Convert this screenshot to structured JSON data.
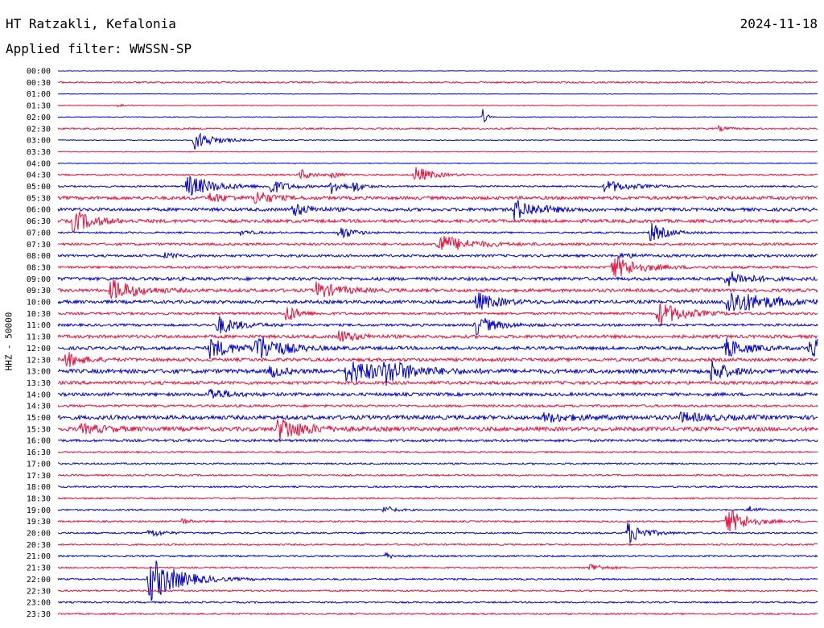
{
  "header": {
    "station": "HT Ratzakli, Kefalonia",
    "date": "2024-11-18",
    "filter": "Applied filter: WWSSN-SP"
  },
  "chart_data": {
    "type": "line",
    "description_kind": "helicorder",
    "ylabel": "HHZ - 50000",
    "row_labels": [
      "00:00",
      "00:30",
      "01:00",
      "01:30",
      "02:00",
      "02:30",
      "03:00",
      "03:30",
      "04:00",
      "04:30",
      "05:00",
      "05:30",
      "06:00",
      "06:30",
      "07:00",
      "07:30",
      "08:00",
      "08:30",
      "09:00",
      "09:30",
      "10:00",
      "10:30",
      "11:00",
      "11:30",
      "12:00",
      "12:30",
      "13:00",
      "13:30",
      "14:00",
      "14:30",
      "15:00",
      "15:30",
      "16:00",
      "16:30",
      "17:00",
      "17:30",
      "18:00",
      "18:30",
      "19:00",
      "19:30",
      "20:00",
      "20:30",
      "21:00",
      "21:30",
      "22:00",
      "22:30",
      "23:00",
      "23:30"
    ],
    "colors": [
      "#0000cc",
      "#e8103c"
    ],
    "noise": [
      0.3,
      1,
      0.3,
      0.5,
      0.5,
      1,
      0.5,
      0.5,
      0.5,
      1,
      1,
      2,
      2,
      2,
      1,
      1.5,
      1.5,
      1.5,
      2,
      2,
      2,
      1.5,
      1.5,
      2,
      2,
      2,
      2.5,
      2,
      2,
      1.5,
      2.5,
      2.5,
      1.5,
      1,
      1,
      1,
      1,
      1,
      1,
      1,
      1,
      1,
      1,
      1,
      1,
      1,
      1,
      1
    ],
    "events": [
      {
        "row": 4,
        "x": 0.56,
        "amp": 12,
        "dur": 0.004
      },
      {
        "row": 3,
        "x": 0.08,
        "amp": 2,
        "dur": 0.01
      },
      {
        "row": 5,
        "x": 0.87,
        "amp": 3,
        "dur": 0.01
      },
      {
        "row": 6,
        "x": 0.18,
        "amp": 12,
        "dur": 0.025
      },
      {
        "row": 9,
        "x": 0.32,
        "amp": 7,
        "dur": 0.012
      },
      {
        "row": 9,
        "x": 0.36,
        "amp": 4,
        "dur": 0.01
      },
      {
        "row": 9,
        "x": 0.47,
        "amp": 11,
        "dur": 0.02
      },
      {
        "row": 10,
        "x": 0.17,
        "amp": 14,
        "dur": 0.035
      },
      {
        "row": 10,
        "x": 0.28,
        "amp": 9,
        "dur": 0.02
      },
      {
        "row": 10,
        "x": 0.36,
        "amp": 9,
        "dur": 0.015
      },
      {
        "row": 10,
        "x": 0.39,
        "amp": 7,
        "dur": 0.01
      },
      {
        "row": 10,
        "x": 0.72,
        "amp": 8,
        "dur": 0.03
      },
      {
        "row": 11,
        "x": 0.2,
        "amp": 6,
        "dur": 0.02
      },
      {
        "row": 11,
        "x": 0.26,
        "amp": 9,
        "dur": 0.02
      },
      {
        "row": 12,
        "x": 0.31,
        "amp": 8,
        "dur": 0.02
      },
      {
        "row": 12,
        "x": 0.6,
        "amp": 13,
        "dur": 0.03
      },
      {
        "row": 13,
        "x": 0.02,
        "amp": 14,
        "dur": 0.025
      },
      {
        "row": 14,
        "x": 0.24,
        "amp": 3,
        "dur": 0.015
      },
      {
        "row": 14,
        "x": 0.37,
        "amp": 10,
        "dur": 0.015
      },
      {
        "row": 14,
        "x": 0.78,
        "amp": 12,
        "dur": 0.02
      },
      {
        "row": 15,
        "x": 0.5,
        "amp": 13,
        "dur": 0.035
      },
      {
        "row": 16,
        "x": 0.14,
        "amp": 3,
        "dur": 0.02
      },
      {
        "row": 16,
        "x": 0.74,
        "amp": 3,
        "dur": 0.02
      },
      {
        "row": 17,
        "x": 0.73,
        "amp": 16,
        "dur": 0.03
      },
      {
        "row": 18,
        "x": 0.88,
        "amp": 10,
        "dur": 0.025
      },
      {
        "row": 19,
        "x": 0.07,
        "amp": 14,
        "dur": 0.03
      },
      {
        "row": 19,
        "x": 0.34,
        "amp": 10,
        "dur": 0.03
      },
      {
        "row": 20,
        "x": 0.55,
        "amp": 12,
        "dur": 0.025
      },
      {
        "row": 20,
        "x": 0.88,
        "amp": 16,
        "dur": 0.05
      },
      {
        "row": 21,
        "x": 0.3,
        "amp": 12,
        "dur": 0.015
      },
      {
        "row": 21,
        "x": 0.79,
        "amp": 16,
        "dur": 0.03
      },
      {
        "row": 22,
        "x": 0.21,
        "amp": 12,
        "dur": 0.025
      },
      {
        "row": 22,
        "x": 0.55,
        "amp": 12,
        "dur": 0.025
      },
      {
        "row": 23,
        "x": 0.37,
        "amp": 8,
        "dur": 0.02
      },
      {
        "row": 24,
        "x": 0.2,
        "amp": 12,
        "dur": 0.03
      },
      {
        "row": 24,
        "x": 0.26,
        "amp": 18,
        "dur": 0.03
      },
      {
        "row": 24,
        "x": 0.88,
        "amp": 12,
        "dur": 0.025
      },
      {
        "row": 24,
        "x": 0.99,
        "amp": 16,
        "dur": 0.025
      },
      {
        "row": 25,
        "x": 0.01,
        "amp": 10,
        "dur": 0.02
      },
      {
        "row": 26,
        "x": 0.28,
        "amp": 8,
        "dur": 0.015
      },
      {
        "row": 26,
        "x": 0.38,
        "amp": 14,
        "dur": 0.05
      },
      {
        "row": 26,
        "x": 0.43,
        "amp": 12,
        "dur": 0.03
      },
      {
        "row": 26,
        "x": 0.86,
        "amp": 14,
        "dur": 0.02
      },
      {
        "row": 28,
        "x": 0.2,
        "amp": 8,
        "dur": 0.02
      },
      {
        "row": 30,
        "x": 0.64,
        "amp": 5,
        "dur": 0.04
      },
      {
        "row": 30,
        "x": 0.82,
        "amp": 5,
        "dur": 0.04
      },
      {
        "row": 31,
        "x": 0.03,
        "amp": 5,
        "dur": 0.04
      },
      {
        "row": 31,
        "x": 0.29,
        "amp": 16,
        "dur": 0.03
      },
      {
        "row": 38,
        "x": 0.43,
        "amp": 6,
        "dur": 0.01
      },
      {
        "row": 38,
        "x": 0.91,
        "amp": 5,
        "dur": 0.01
      },
      {
        "row": 39,
        "x": 0.16,
        "amp": 5,
        "dur": 0.01
      },
      {
        "row": 39,
        "x": 0.88,
        "amp": 18,
        "dur": 0.025
      },
      {
        "row": 40,
        "x": 0.12,
        "amp": 6,
        "dur": 0.015
      },
      {
        "row": 40,
        "x": 0.75,
        "amp": 14,
        "dur": 0.02
      },
      {
        "row": 42,
        "x": 0.43,
        "amp": 4,
        "dur": 0.01
      },
      {
        "row": 43,
        "x": 0.7,
        "amp": 6,
        "dur": 0.015
      },
      {
        "row": 44,
        "x": 0.12,
        "amp": 30,
        "dur": 0.035
      }
    ]
  }
}
